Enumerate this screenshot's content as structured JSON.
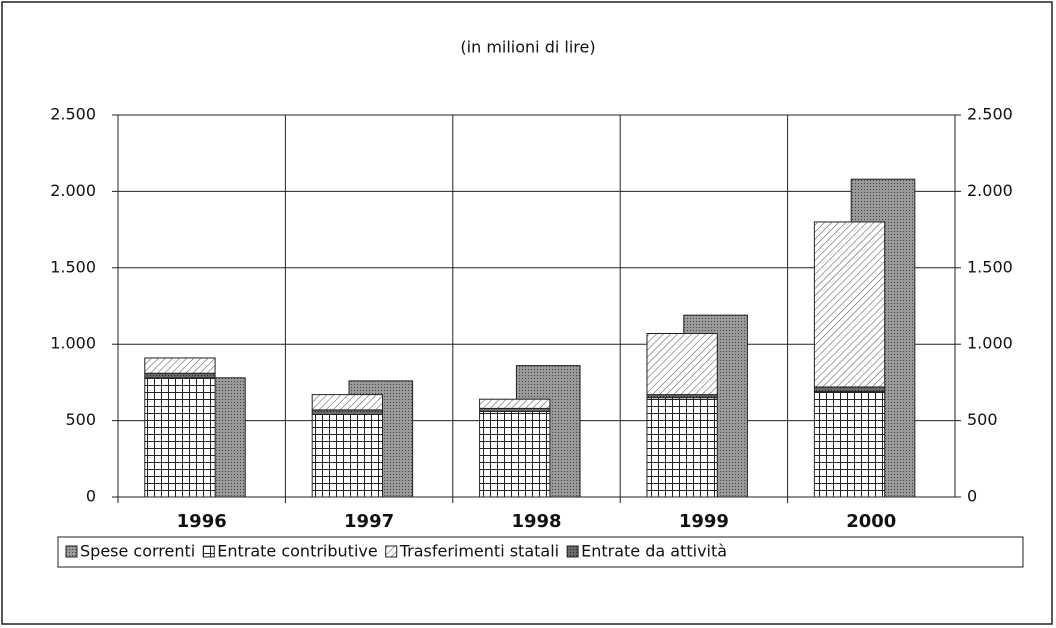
{
  "chart_data": {
    "type": "bar",
    "title": "(in milioni di lire)",
    "categories": [
      "1996",
      "1997",
      "1998",
      "1999",
      "2000"
    ],
    "series": [
      {
        "name": "Spese correnti",
        "color": "#9a9a9a",
        "values": [
          780,
          760,
          860,
          1190,
          2080
        ]
      },
      {
        "name": "Entrate contributive",
        "color": "#ffffff",
        "values": [
          780,
          540,
          560,
          650,
          690
        ]
      },
      {
        "name": "Trasferimenti statali",
        "color": "#ffffff",
        "values": [
          100,
          100,
          60,
          400,
          1080
        ]
      },
      {
        "name": "Entrate da attività",
        "color": "#7a7a7a",
        "values": [
          30,
          30,
          20,
          20,
          30
        ]
      }
    ],
    "ylim": [
      0,
      2500
    ],
    "yticks": [
      0,
      500,
      {
        "value": 1000,
        "label": "1.000"
      },
      {
        "value": 1500,
        "label": "1.500"
      },
      {
        "value": 2000,
        "label": "2.000"
      },
      {
        "value": 2500,
        "label": "2.500"
      }
    ],
    "y2lim": [
      0,
      2500
    ],
    "y2ticks": [
      0,
      500,
      {
        "value": 1000,
        "label": "1.000"
      },
      {
        "value": 1500,
        "label": "1.500"
      },
      {
        "value": 2000,
        "label": "2.000"
      },
      {
        "value": 2500,
        "label": "2.500"
      }
    ],
    "grid": true,
    "legend": "bottom"
  }
}
